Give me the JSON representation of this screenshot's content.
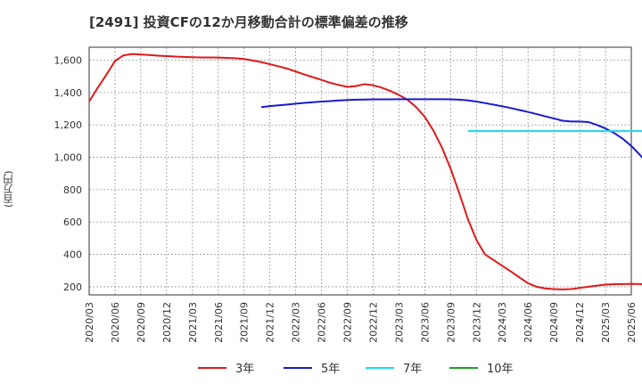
{
  "chart_data": {
    "type": "line",
    "title": "[2491]  投資CFの12か月移動合計の標準偏差の推移",
    "ylabel": "(百万円)",
    "ylim": [
      150,
      1680
    ],
    "yticks": [
      200,
      400,
      600,
      800,
      1000,
      1200,
      1400,
      1600
    ],
    "ytick_labels": [
      "200",
      "400",
      "600",
      "800",
      "1,000",
      "1,200",
      "1,400",
      "1,600"
    ],
    "xticks": [
      "2020/03",
      "2020/06",
      "2020/09",
      "2020/12",
      "2021/03",
      "2021/06",
      "2021/09",
      "2021/12",
      "2022/03",
      "2022/06",
      "2022/09",
      "2022/12",
      "2023/03",
      "2023/06",
      "2023/09",
      "2023/12",
      "2024/03",
      "2024/06",
      "2024/09",
      "2024/12",
      "2025/03",
      "2025/06"
    ],
    "grid": true,
    "legend_position": "bottom",
    "series": [
      {
        "name": "3年",
        "color": "#dd1a1a",
        "start": "2020/03",
        "values": [
          1345,
          1430,
          1510,
          1595,
          1630,
          1638,
          1635,
          1632,
          1628,
          1625,
          1622,
          1620,
          1618,
          1617,
          1617,
          1616,
          1614,
          1612,
          1607,
          1598,
          1588,
          1575,
          1562,
          1548,
          1530,
          1512,
          1495,
          1478,
          1460,
          1447,
          1435,
          1440,
          1452,
          1445,
          1430,
          1410,
          1385,
          1355,
          1310,
          1250,
          1165,
          1060,
          930,
          780,
          620,
          490,
          400,
          365,
          330,
          295,
          258,
          222,
          200,
          190,
          186,
          184,
          186,
          193,
          200,
          207,
          213,
          216,
          217,
          218,
          217,
          216,
          215,
          220,
          232,
          247,
          268
        ]
      },
      {
        "name": "5年",
        "color": "#1a1ad0",
        "start": "2021/11",
        "values": [
          1310,
          1316,
          1321,
          1326,
          1331,
          1336,
          1340,
          1344,
          1347,
          1351,
          1354,
          1356,
          1357,
          1358,
          1358,
          1358,
          1359,
          1359,
          1359,
          1359,
          1359,
          1359,
          1358,
          1356,
          1352,
          1344,
          1335,
          1325,
          1315,
          1304,
          1292,
          1280,
          1267,
          1253,
          1240,
          1226,
          1221,
          1221,
          1218,
          1200,
          1178,
          1150,
          1115,
          1070,
          1015,
          955,
          903
        ]
      },
      {
        "name": "7年",
        "color": "#1ad8f0",
        "start": "2023/11",
        "values": [
          1162,
          1162,
          1162,
          1162,
          1162,
          1162,
          1162,
          1162,
          1162,
          1162,
          1162,
          1162,
          1162,
          1162,
          1162,
          1162,
          1162,
          1162,
          1162,
          1162,
          1162,
          1162
        ]
      },
      {
        "name": "10年",
        "color": "#20a020",
        "start": "2025/03",
        "values": []
      }
    ]
  }
}
